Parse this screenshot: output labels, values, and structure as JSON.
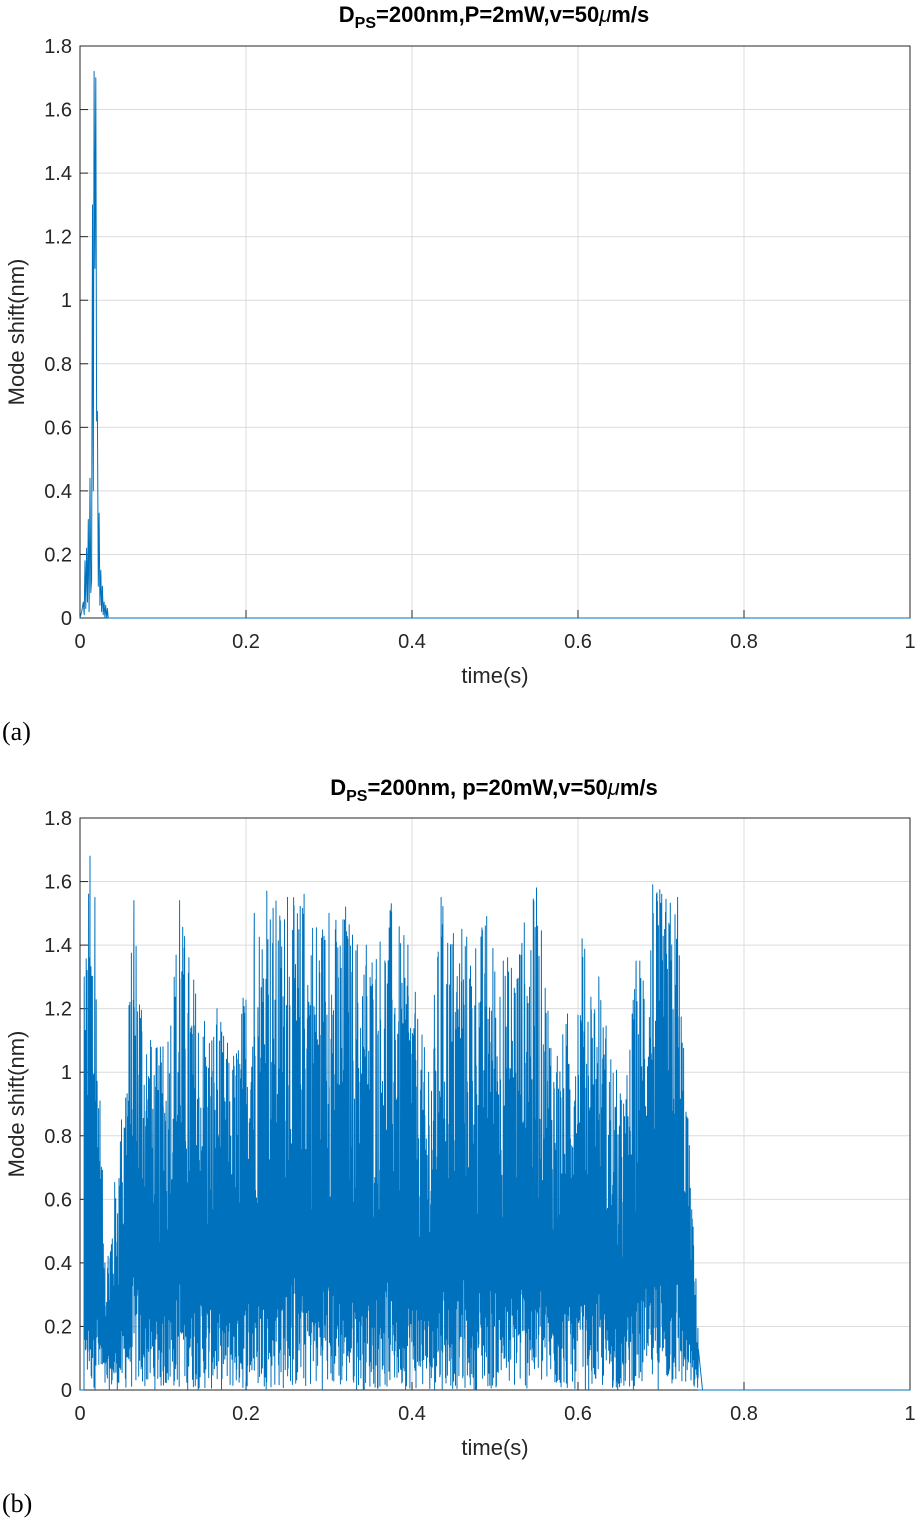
{
  "chart_data": [
    {
      "type": "line",
      "panel_label": "(a)",
      "title": {
        "main": "D",
        "sub": "PS",
        "rest_before_mu": "=200nm,P=2mW,v=50",
        "mu": "μ",
        "rest_after_mu": "m/s"
      },
      "xlabel": "time(s)",
      "ylabel": "Mode shift(nm)",
      "xlim": [
        0,
        1
      ],
      "ylim": [
        0,
        1.8
      ],
      "xticks": [
        0,
        0.2,
        0.4,
        0.6,
        0.8,
        1
      ],
      "xtick_labels": [
        "0",
        "0.2",
        "0.4",
        "0.6",
        "0.8",
        "1"
      ],
      "yticks": [
        0,
        0.2,
        0.4,
        0.6,
        0.8,
        1,
        1.2,
        1.4,
        1.6,
        1.8
      ],
      "ytick_labels": [
        "0",
        "0.2",
        "0.4",
        "0.6",
        "0.8",
        "1",
        "1.2",
        "1.4",
        "1.6",
        "1.8"
      ],
      "grid": true,
      "line_color": "#0072BD",
      "series": [
        {
          "x": [
            0,
            0.002,
            0.004,
            0.005,
            0.006,
            0.007,
            0.008,
            0.009,
            0.01,
            0.011,
            0.012,
            0.013,
            0.014,
            0.015,
            0.016,
            0.017,
            0.018,
            0.019,
            0.02,
            0.021,
            0.022,
            0.023,
            0.024,
            0.025,
            0.026,
            0.027,
            0.028,
            0.029,
            0.03,
            0.031,
            0.032,
            0.033,
            0.034,
            0.035,
            1.0
          ],
          "y": [
            0,
            0.02,
            0.05,
            0.01,
            0.18,
            0.03,
            0.22,
            0.05,
            0.31,
            0.02,
            0.44,
            0.08,
            0.12,
            1.3,
            0.4,
            1.72,
            1.1,
            1.7,
            0.62,
            0.65,
            0.1,
            0.33,
            0.04,
            0.15,
            0.02,
            0.1,
            0.01,
            0.05,
            0.0,
            0.04,
            0.0,
            0.03,
            0.0,
            0.0,
            0.0
          ]
        }
      ]
    },
    {
      "type": "line",
      "panel_label": "(b)",
      "title": {
        "main": "D",
        "sub": "PS",
        "rest_before_mu": "=200nm, p=20mW,v=50",
        "mu": "μ",
        "rest_after_mu": "m/s"
      },
      "xlabel": "time(s)",
      "ylabel": "Mode shift(nm)",
      "xlim": [
        0,
        1
      ],
      "ylim": [
        0,
        1.8
      ],
      "xticks": [
        0,
        0.2,
        0.4,
        0.6,
        0.8,
        1
      ],
      "xtick_labels": [
        "0",
        "0.2",
        "0.4",
        "0.6",
        "0.8",
        "1"
      ],
      "yticks": [
        0,
        0.2,
        0.4,
        0.6,
        0.8,
        1,
        1.2,
        1.4,
        1.6,
        1.8
      ],
      "ytick_labels": [
        "0",
        "0.2",
        "0.4",
        "0.6",
        "0.8",
        "1",
        "1.2",
        "1.4",
        "1.6",
        "1.8"
      ],
      "grid": true,
      "line_color": "#0072BD",
      "series": [
        {
          "description_free_envelope": true,
          "active_interval": [
            0,
            0.745
          ],
          "peak_points": [
            {
              "x": 0.005,
              "y": 1.3
            },
            {
              "x": 0.012,
              "y": 1.68
            },
            {
              "x": 0.018,
              "y": 1.55
            },
            {
              "x": 0.03,
              "y": 0.4
            },
            {
              "x": 0.05,
              "y": 0.85
            },
            {
              "x": 0.065,
              "y": 1.54
            },
            {
              "x": 0.085,
              "y": 1.1
            },
            {
              "x": 0.1,
              "y": 1.08
            },
            {
              "x": 0.12,
              "y": 1.54
            },
            {
              "x": 0.15,
              "y": 1.16
            },
            {
              "x": 0.165,
              "y": 1.2
            },
            {
              "x": 0.185,
              "y": 1.05
            },
            {
              "x": 0.21,
              "y": 1.5
            },
            {
              "x": 0.225,
              "y": 1.57
            },
            {
              "x": 0.25,
              "y": 1.55
            },
            {
              "x": 0.27,
              "y": 1.56
            },
            {
              "x": 0.3,
              "y": 1.5
            },
            {
              "x": 0.32,
              "y": 1.52
            },
            {
              "x": 0.345,
              "y": 1.4
            },
            {
              "x": 0.375,
              "y": 1.53
            },
            {
              "x": 0.395,
              "y": 1.4
            },
            {
              "x": 0.42,
              "y": 1.0
            },
            {
              "x": 0.435,
              "y": 1.55
            },
            {
              "x": 0.46,
              "y": 1.45
            },
            {
              "x": 0.49,
              "y": 1.49
            },
            {
              "x": 0.51,
              "y": 1.35
            },
            {
              "x": 0.55,
              "y": 1.58
            },
            {
              "x": 0.575,
              "y": 1.05
            },
            {
              "x": 0.605,
              "y": 1.42
            },
            {
              "x": 0.625,
              "y": 1.3
            },
            {
              "x": 0.655,
              "y": 0.9
            },
            {
              "x": 0.67,
              "y": 1.35
            },
            {
              "x": 0.69,
              "y": 1.59
            },
            {
              "x": 0.72,
              "y": 1.55
            },
            {
              "x": 0.742,
              "y": 0.35
            },
            {
              "x": 0.75,
              "y": 0.0
            },
            {
              "x": 1.0,
              "y": 0.0
            }
          ]
        }
      ]
    }
  ]
}
